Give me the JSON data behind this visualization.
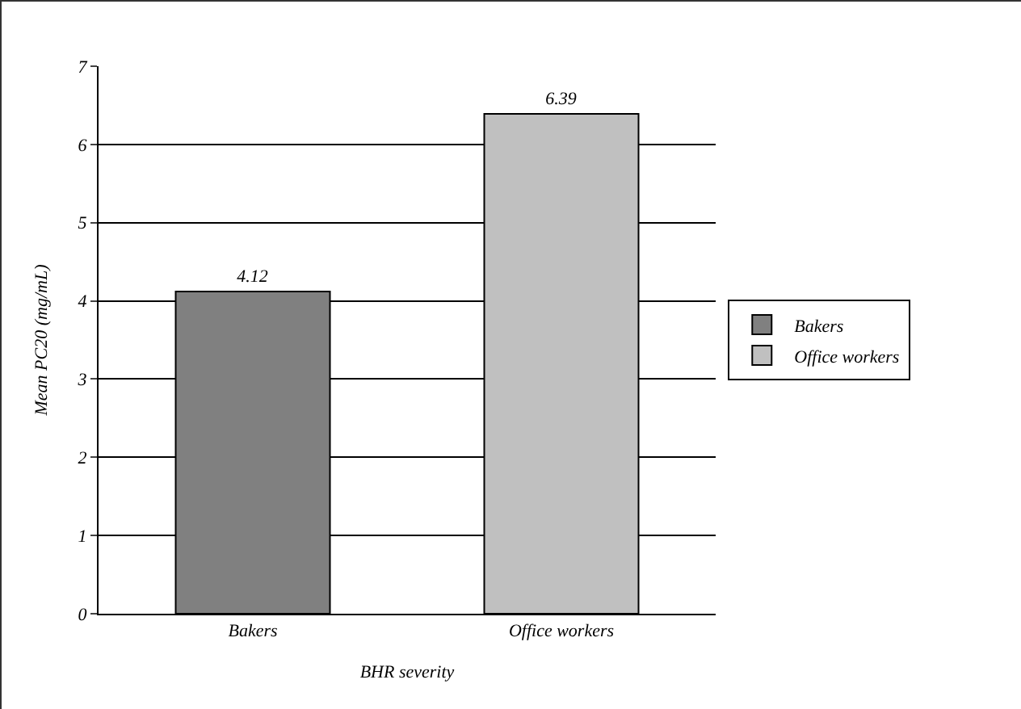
{
  "chart_data": {
    "type": "bar",
    "xlabel": "BHR severity",
    "ylabel": "Mean PC20 (mg/mL)",
    "categories": [
      "Bakers",
      "Office workers"
    ],
    "series": [
      {
        "name": "Bakers",
        "color": "#808080",
        "values": [
          4.12,
          null
        ]
      },
      {
        "name": "Office workers",
        "color": "#c0c0c0",
        "values": [
          null,
          6.39
        ]
      }
    ],
    "ylim": [
      0,
      7
    ],
    "yticks": [
      0,
      1,
      2,
      3,
      4,
      5,
      6,
      7
    ],
    "grid": "y",
    "legend": "right",
    "data_labels": true
  }
}
